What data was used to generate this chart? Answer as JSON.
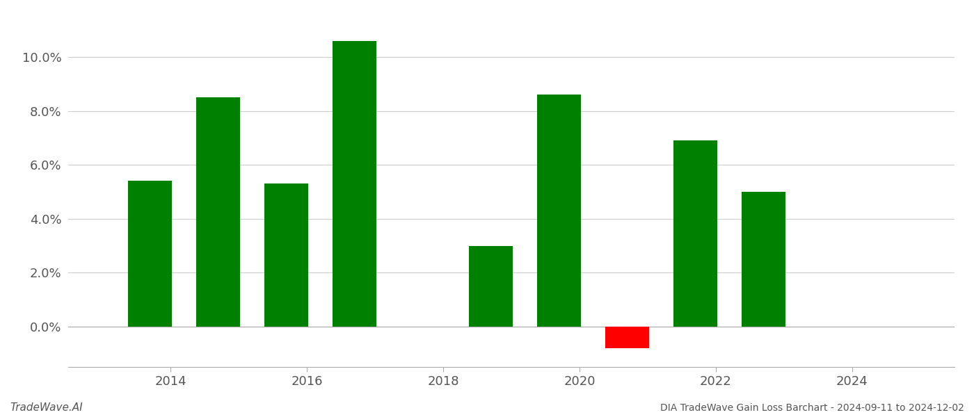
{
  "bar_positions": [
    2013.7,
    2014.7,
    2015.7,
    2016.7,
    2018.7,
    2019.7,
    2020.7,
    2021.7,
    2022.7,
    2023.7
  ],
  "bar_values": [
    0.054,
    0.085,
    0.053,
    0.106,
    0.03,
    0.086,
    -0.008,
    0.069,
    0.05,
    0.0
  ],
  "bar_width": 0.65,
  "bar_color_pos": "#008000",
  "bar_color_neg": "#ff0000",
  "background_color": "#ffffff",
  "grid_color": "#cccccc",
  "title": "DIA TradeWave Gain Loss Barchart - 2024-09-11 to 2024-12-02",
  "watermark": "TradeWave.AI",
  "ylim_min": -0.015,
  "ylim_max": 0.115,
  "xlim_min": 2012.5,
  "xlim_max": 2025.5,
  "xticks": [
    2014,
    2016,
    2018,
    2020,
    2022,
    2024
  ],
  "yticks": [
    0.0,
    0.02,
    0.04,
    0.06,
    0.08,
    0.1
  ],
  "tick_fontsize": 13,
  "figwidth": 14.0,
  "figheight": 6.0,
  "dpi": 100
}
